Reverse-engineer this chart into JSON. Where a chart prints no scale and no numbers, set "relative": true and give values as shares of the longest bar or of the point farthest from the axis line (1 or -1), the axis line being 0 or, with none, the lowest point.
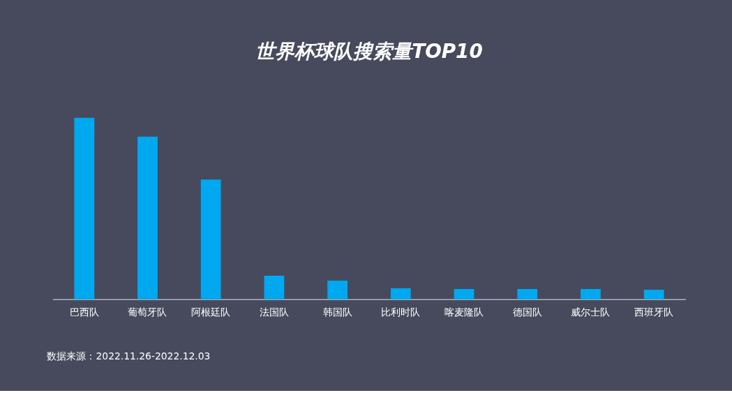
{
  "chart_data": {
    "type": "bar",
    "title": "世界杯球队搜索量TOP10",
    "categories": [
      "巴西队",
      "葡萄牙队",
      "阿根廷队",
      "法国队",
      "韩国队",
      "比利时队",
      "喀麦隆队",
      "德国队",
      "威尔士队",
      "西班牙队"
    ],
    "values": [
      1,
      0.897,
      0.66,
      0.13,
      0.103,
      0.061,
      0.057,
      0.057,
      0.057,
      0.053
    ],
    "color": "#00a8f0",
    "relative": true,
    "annotations": [
      "数据来源：2022.11.26-2022.12.03"
    ]
  }
}
